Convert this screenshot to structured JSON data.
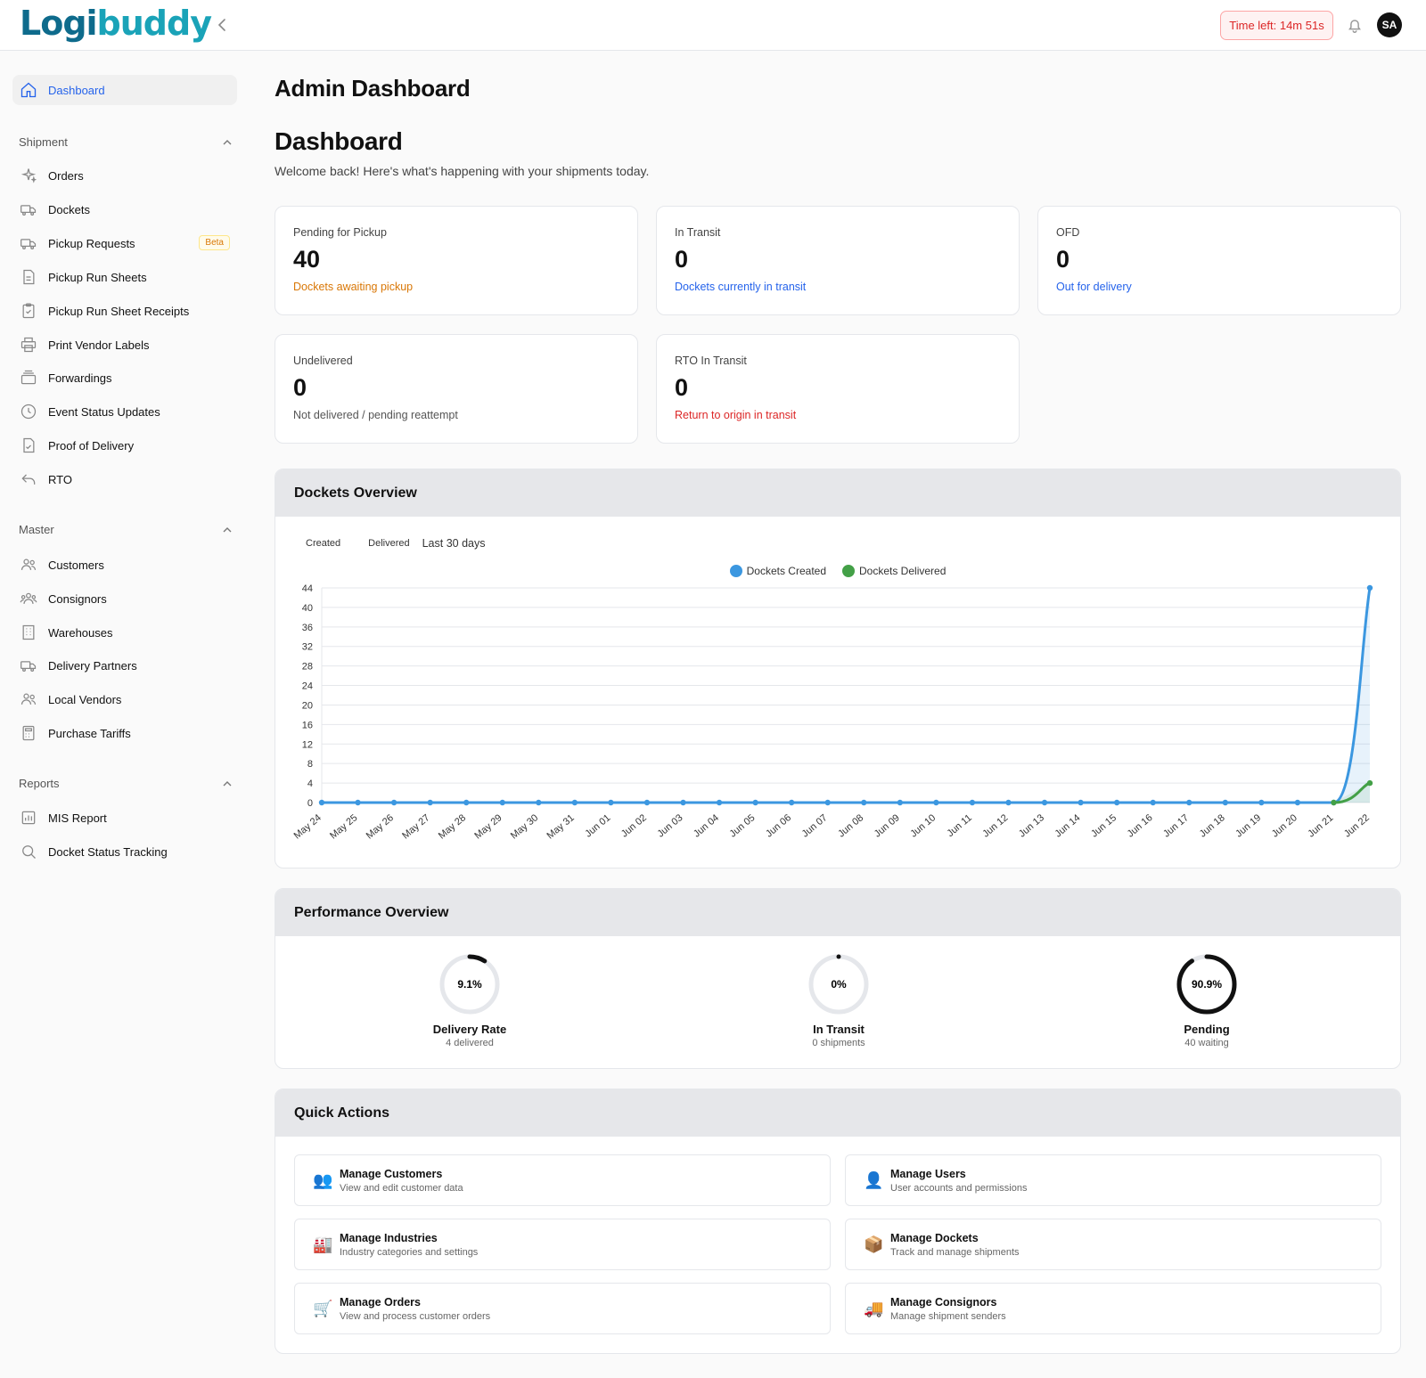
{
  "brand": {
    "part1": "Logi",
    "part2": "buddy"
  },
  "header": {
    "timer": "Time left: 14m 51s",
    "avatar": "SA"
  },
  "sidebar": {
    "dashboard": "Dashboard",
    "sections": [
      {
        "label": "Shipment",
        "items": [
          "Orders",
          "Dockets",
          "Pickup Requests",
          "Pickup Run Sheets",
          "Pickup Run Sheet Receipts",
          "Print Vendor Labels",
          "Forwardings",
          "Event Status Updates",
          "Proof of Delivery",
          "RTO"
        ]
      },
      {
        "label": "Master",
        "items": [
          "Customers",
          "Consignors",
          "Warehouses",
          "Delivery Partners",
          "Local Vendors",
          "Purchase Tariffs"
        ]
      },
      {
        "label": "Reports",
        "items": [
          "MIS Report",
          "Docket Status Tracking"
        ]
      }
    ],
    "beta_badge": "Beta"
  },
  "page": {
    "title": "Admin Dashboard",
    "heading": "Dashboard",
    "welcome": "Welcome back! Here's what's happening with your shipments today."
  },
  "stats": [
    {
      "label": "Pending for Pickup",
      "value": "40",
      "desc": "Dockets awaiting pickup",
      "color": "#d97706"
    },
    {
      "label": "In Transit",
      "value": "0",
      "desc": "Dockets currently in transit",
      "color": "#2563eb"
    },
    {
      "label": "OFD",
      "value": "0",
      "desc": "Out for delivery",
      "color": "#2563eb"
    },
    {
      "label": "Undelivered",
      "value": "0",
      "desc": "Not delivered / pending reattempt",
      "color": "#555555"
    },
    {
      "label": "RTO In Transit",
      "value": "0",
      "desc": "Return to origin in transit",
      "color": "#dc2626"
    }
  ],
  "overview": {
    "title": "Dockets Overview",
    "tabs": [
      "Created",
      "Delivered"
    ],
    "range": "Last 30 days"
  },
  "chart_data": {
    "type": "line",
    "x": [
      "May 24",
      "May 25",
      "May 26",
      "May 27",
      "May 28",
      "May 29",
      "May 30",
      "May 31",
      "Jun 01",
      "Jun 02",
      "Jun 03",
      "Jun 04",
      "Jun 05",
      "Jun 06",
      "Jun 07",
      "Jun 08",
      "Jun 09",
      "Jun 10",
      "Jun 11",
      "Jun 12",
      "Jun 13",
      "Jun 14",
      "Jun 15",
      "Jun 16",
      "Jun 17",
      "Jun 18",
      "Jun 19",
      "Jun 20",
      "Jun 21",
      "Jun 22"
    ],
    "series": [
      {
        "name": "Dockets Created",
        "color": "#3b97e0",
        "values": [
          0,
          0,
          0,
          0,
          0,
          0,
          0,
          0,
          0,
          0,
          0,
          0,
          0,
          0,
          0,
          0,
          0,
          0,
          0,
          0,
          0,
          0,
          0,
          0,
          0,
          0,
          0,
          0,
          0,
          44
        ]
      },
      {
        "name": "Dockets Delivered",
        "color": "#43a047",
        "values": [
          null,
          null,
          null,
          null,
          null,
          null,
          null,
          null,
          null,
          null,
          null,
          null,
          null,
          null,
          null,
          null,
          null,
          null,
          null,
          null,
          null,
          null,
          null,
          null,
          null,
          null,
          null,
          null,
          0,
          4
        ]
      }
    ],
    "yticks": [
      0,
      4,
      8,
      12,
      16,
      20,
      24,
      28,
      32,
      36,
      40,
      44
    ],
    "ylim": [
      0,
      44
    ],
    "grid": true,
    "legend": "top-center"
  },
  "performance": {
    "title": "Performance Overview",
    "gauges": [
      {
        "value": "9.1%",
        "fraction": 0.091,
        "label": "Delivery Rate",
        "sub": "4 delivered"
      },
      {
        "value": "0%",
        "fraction": 0,
        "label": "In Transit",
        "sub": "0 shipments"
      },
      {
        "value": "90.9%",
        "fraction": 0.909,
        "label": "Pending",
        "sub": "40 waiting"
      }
    ]
  },
  "quick_actions": {
    "title": "Quick Actions",
    "items": [
      {
        "icon": "👥",
        "title": "Manage Customers",
        "desc": "View and edit customer data"
      },
      {
        "icon": "👤",
        "title": "Manage Users",
        "desc": "User accounts and permissions"
      },
      {
        "icon": "🏭",
        "title": "Manage Industries",
        "desc": "Industry categories and settings"
      },
      {
        "icon": "📦",
        "title": "Manage Dockets",
        "desc": "Track and manage shipments"
      },
      {
        "icon": "🛒",
        "title": "Manage Orders",
        "desc": "View and process customer orders"
      },
      {
        "icon": "🚚",
        "title": "Manage Consignors",
        "desc": "Manage shipment senders"
      }
    ]
  }
}
